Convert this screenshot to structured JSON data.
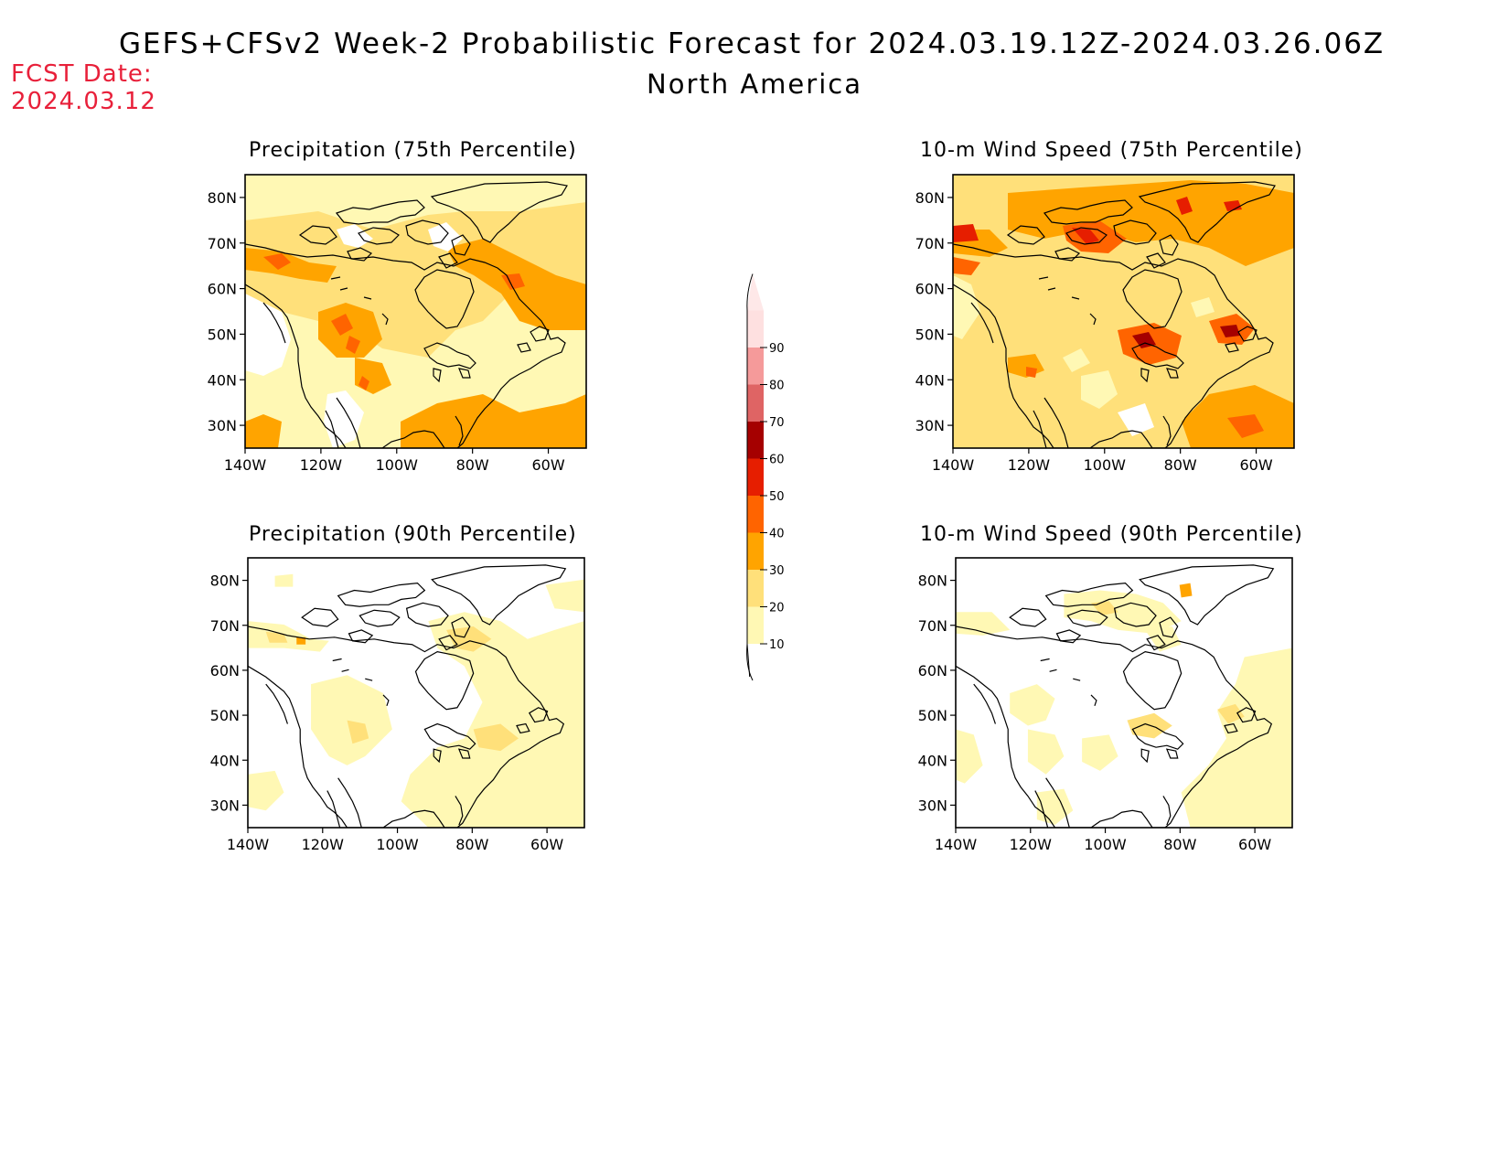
{
  "header": {
    "title": "GEFS+CFSv2 Week-2 Probabilistic Forecast for 2024.03.19.12Z-2024.03.26.06Z",
    "region": "North America",
    "fcst_label": "FCST Date:",
    "fcst_date": "2024.03.12"
  },
  "panels": [
    {
      "id": "precip75",
      "title": "Precipitation (75th Percentile)"
    },
    {
      "id": "wind75",
      "title": "10-m Wind Speed (75th Percentile)"
    },
    {
      "id": "precip90",
      "title": "Precipitation (90th Percentile)"
    },
    {
      "id": "wind90",
      "title": "10-m Wind Speed (90th Percentile)"
    }
  ],
  "axes": {
    "lon_labels": [
      "140W",
      "120W",
      "100W",
      "80W",
      "60W"
    ],
    "lat_labels": [
      "80N",
      "70N",
      "60N",
      "50N",
      "40N",
      "30N"
    ],
    "lon_range": [
      -140,
      -50
    ],
    "lat_range": [
      25,
      85
    ]
  },
  "colorbar": {
    "levels": [
      "10",
      "20",
      "30",
      "40",
      "50",
      "60",
      "70",
      "80",
      "90"
    ],
    "colors": [
      "#fff8b4",
      "#ffe07a",
      "#ffa400",
      "#ff6400",
      "#e61e00",
      "#a50000",
      "#df6464",
      "#f59a9a",
      "#fee0e0"
    ]
  }
}
